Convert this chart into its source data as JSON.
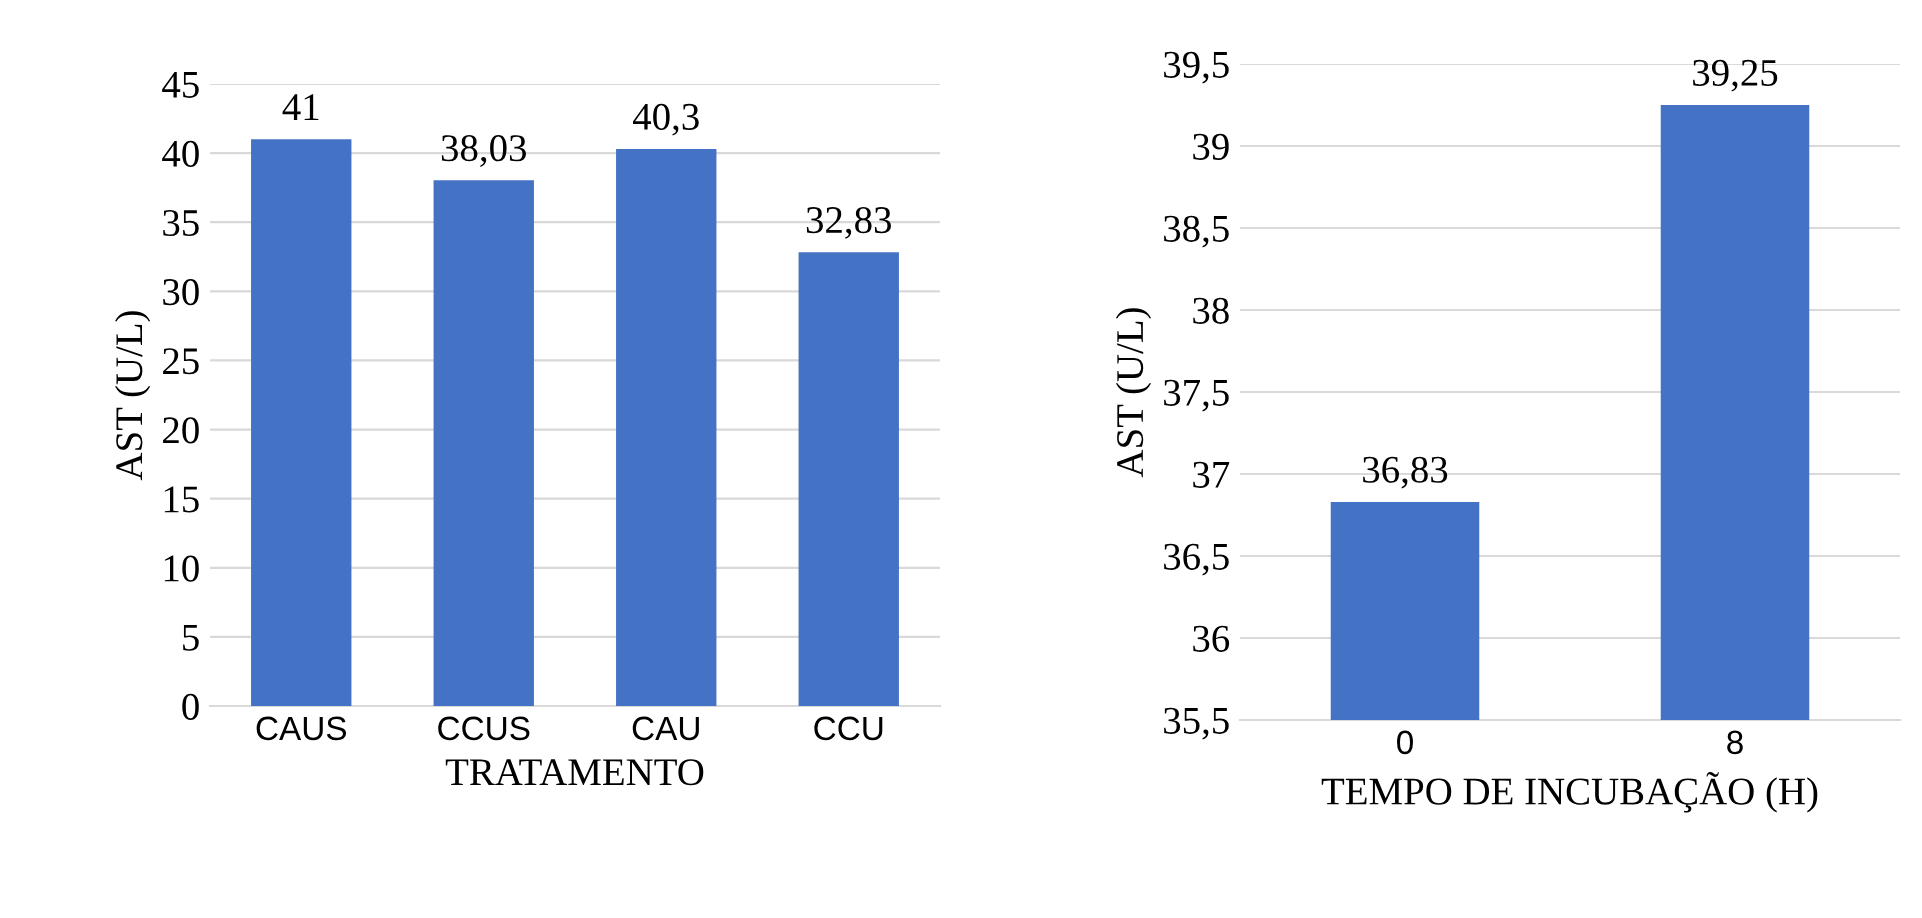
{
  "chart_data": [
    {
      "type": "bar",
      "xlabel": "TRATAMENTO",
      "ylabel": "AST (U/L)",
      "categories": [
        "CAUS",
        "CCUS",
        "CAU",
        "CCU"
      ],
      "values": [
        41,
        38.03,
        40.3,
        32.83
      ],
      "value_labels": [
        "41",
        "38,03",
        "40,3",
        "32,83"
      ],
      "color": "#4472c4",
      "ylim": [
        0,
        45
      ],
      "yticks": [
        0,
        5,
        10,
        15,
        20,
        25,
        30,
        35,
        40,
        45
      ],
      "grid": "y"
    },
    {
      "type": "bar",
      "xlabel": "TEMPO DE INCUBAÇÃO (H)",
      "ylabel": "AST (U/L)",
      "categories": [
        "0",
        "8"
      ],
      "values": [
        36.83,
        39.25
      ],
      "value_labels": [
        "36,83",
        "39,25"
      ],
      "color": "#4472c4",
      "ylim": [
        35.5,
        39.5
      ],
      "yticks": [
        {
          "value": 35.5,
          "label": "35,5"
        },
        36,
        {
          "value": 36.5,
          "label": "36,5"
        },
        37,
        {
          "value": 37.5,
          "label": "37,5"
        },
        38,
        {
          "value": 38.5,
          "label": "38,5"
        },
        39,
        {
          "value": 39.5,
          "label": "39,5"
        }
      ],
      "grid": "y"
    }
  ]
}
